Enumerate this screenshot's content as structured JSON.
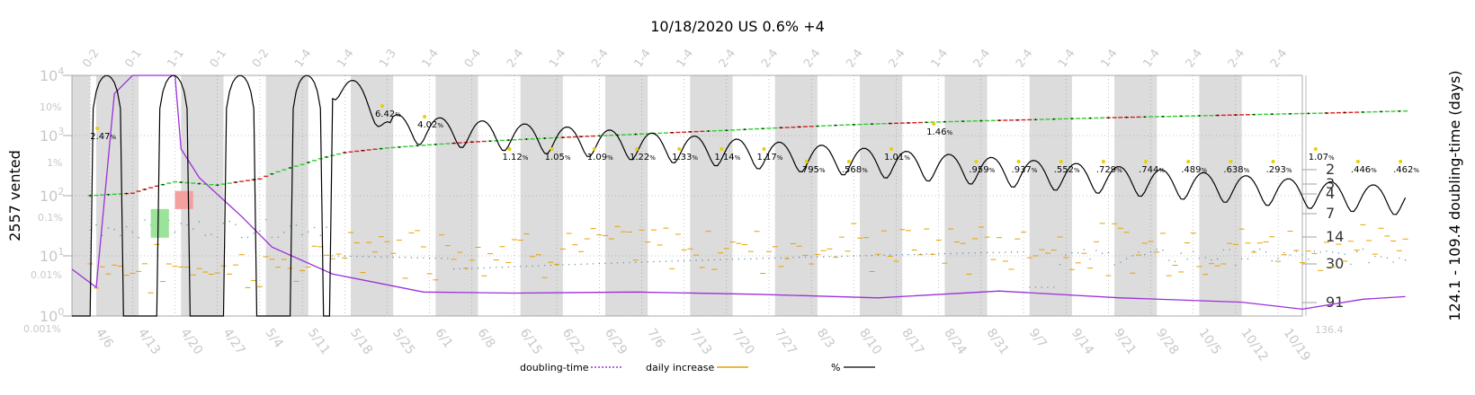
{
  "chart_data": {
    "type": "line",
    "title": "10/18/2020 US 0.6% +4",
    "ylabel_left": "2557 vented",
    "ylabel_right": "124.1 - 109.4 doubling-time (days)",
    "y_scale": "log",
    "ylim": [
      1,
      10000
    ],
    "y_ticks": [
      "10^0",
      "10^1",
      "10^2",
      "10^3",
      "10^4"
    ],
    "pct_ticks": [
      "0.001%",
      "0.01%",
      "0.1%",
      "1%",
      "10%"
    ],
    "right_ticks": [
      "2",
      "3",
      "4",
      "7",
      "14",
      "30",
      "91",
      "136.4"
    ],
    "right_tick_values": [
      2,
      3,
      4,
      7,
      14,
      30,
      91,
      136.4
    ],
    "x_dates": [
      "4/6",
      "4/13",
      "4/20",
      "4/27",
      "5/4",
      "5/11",
      "5/18",
      "5/25",
      "6/1",
      "6/8",
      "6/15",
      "6/22",
      "6/29",
      "7/6",
      "7/13",
      "7/20",
      "7/27",
      "8/3",
      "8/10",
      "8/17",
      "8/24",
      "8/31",
      "9/7",
      "9/14",
      "9/21",
      "9/28",
      "10/5",
      "10/12",
      "10/19"
    ],
    "top_labels": [
      "0-2",
      "0-1",
      "1-1",
      "0-1",
      "0-2",
      "1-4",
      "1-4",
      "1-3",
      "1-4",
      "0-4",
      "2-4",
      "1-4",
      "2-4",
      "1-4",
      "1-4",
      "2-4",
      "2-4",
      "2-4",
      "2-4",
      "2-4",
      "1-4",
      "2-4",
      "2-4",
      "1-4",
      "1-4",
      "1-4",
      "2-4",
      "2-4",
      "2-4"
    ],
    "shaded_weeks": [
      1,
      3,
      5,
      7,
      9,
      11,
      13,
      15,
      17,
      19,
      21,
      23,
      25,
      27
    ],
    "pct_labels": [
      {
        "text": "2.47",
        "day": 0
      },
      {
        "text": "6.42",
        "day": 47
      },
      {
        "text": "4.02",
        "day": 54
      },
      {
        "text": "1.12",
        "day": 68
      },
      {
        "text": "1.05",
        "day": 75
      },
      {
        "text": "1.09",
        "day": 82
      },
      {
        "text": "1.22",
        "day": 89
      },
      {
        "text": "1.33",
        "day": 96
      },
      {
        "text": "1.14",
        "day": 103
      },
      {
        "text": "1.17",
        "day": 110
      },
      {
        "text": ".795",
        "day": 117
      },
      {
        "text": ".568",
        "day": 124
      },
      {
        "text": "1.01",
        "day": 131
      },
      {
        "text": "1.46",
        "day": 138
      },
      {
        "text": ".959",
        "day": 145
      },
      {
        "text": ".937",
        "day": 152
      },
      {
        "text": ".552",
        "day": 159
      },
      {
        "text": ".729",
        "day": 166
      },
      {
        "text": ".744",
        "day": 173
      },
      {
        "text": ".489",
        "day": 180
      },
      {
        "text": ".638",
        "day": 187
      },
      {
        "text": ".293",
        "day": 194
      },
      {
        "text": "1.07",
        "day": 201
      },
      {
        "text": ".446",
        "day": 208
      },
      {
        "text": ".462",
        "day": 215
      }
    ],
    "pct_unit": "%",
    "series": [
      {
        "name": "doubling-time",
        "color": "#9b30d9",
        "style": "dotted"
      },
      {
        "name": "daily increase",
        "color": "#e8a000",
        "style": "solid"
      },
      {
        "name": "%",
        "color": "#000000",
        "style": "solid"
      }
    ],
    "cumulative_days": [
      0,
      7,
      14,
      21,
      28,
      35,
      42,
      49,
      56,
      63,
      70,
      77,
      84,
      91,
      98,
      105,
      112,
      119,
      126,
      133,
      140,
      147,
      154,
      161,
      168,
      175,
      182,
      189,
      196,
      203,
      210,
      217
    ],
    "cumulative_values": [
      100,
      110,
      170,
      150,
      190,
      330,
      520,
      620,
      700,
      780,
      850,
      920,
      990,
      1060,
      1140,
      1220,
      1320,
      1420,
      1520,
      1600,
      1680,
      1760,
      1820,
      1900,
      1980,
      2050,
      2120,
      2200,
      2280,
      2350,
      2450,
      2557
    ],
    "doubling_days": [
      -3,
      1,
      4,
      7,
      10,
      14,
      15,
      18,
      25,
      30,
      40,
      55,
      70,
      90,
      110,
      130,
      150,
      170,
      190,
      200,
      210,
      217
    ],
    "doubling_values": [
      6,
      3,
      5000,
      10000,
      10000,
      10000,
      600,
      200,
      45,
      14,
      5,
      2.5,
      2.4,
      2.5,
      2.3,
      2.0,
      2.6,
      2.0,
      1.7,
      1.3,
      1.9,
      2.1
    ]
  },
  "legend": {
    "doubling": "doubling-time",
    "daily": "daily increase",
    "pct": "%"
  },
  "colors": {
    "shade": "#dcdcdc",
    "grey_text": "#c8c8c8",
    "green": "#2ecc2e",
    "red": "#d62020",
    "purple": "#9b30d9",
    "orange": "#e8a000",
    "dot_blue": "#5a8fb0",
    "yellow": "#e8d000"
  }
}
